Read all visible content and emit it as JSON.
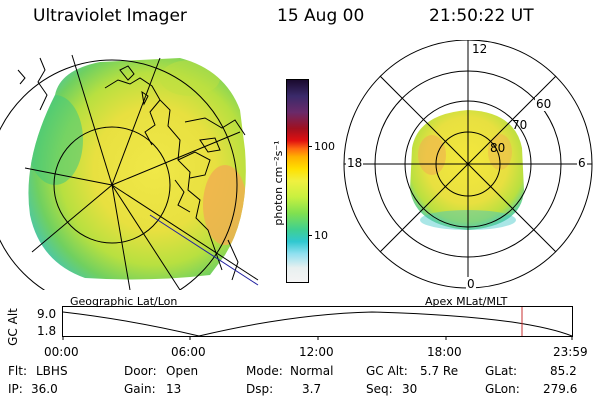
{
  "header": {
    "instrument": "Ultraviolet Imager",
    "date": "15 Aug 00",
    "time": "21:50:22 UT"
  },
  "colorbar": {
    "unit_label": "photon cm⁻²s⁻¹",
    "tick_labels": [
      "100",
      "10"
    ],
    "tick_values": [
      100,
      10
    ],
    "range": [
      2,
      700
    ],
    "colors_top_to_bottom": [
      "#1a0a2e",
      "#3a2a6a",
      "#6a2a6a",
      "#a01020",
      "#e01010",
      "#ff6a10",
      "#ffb000",
      "#ffe000",
      "#f0f040",
      "#c8f040",
      "#80e050",
      "#40d090",
      "#30c8d0",
      "#90e0f0",
      "#e8f0f0",
      "#f4f4f4"
    ]
  },
  "geo_panel": {
    "label": "Geographic Lat/Lon",
    "colors": {
      "land": "#000000",
      "bright": "#f0e040",
      "dim": "#40c880",
      "edge": "#60d0e0",
      "limb": "#f0b050"
    }
  },
  "polar_panel": {
    "label": "Apex MLat/MLT",
    "mlt_labels": {
      "top": "12",
      "bottom": "0",
      "left": "18",
      "right": "6"
    },
    "lat_labels": [
      "60",
      "70",
      "80"
    ]
  },
  "altitude_plot": {
    "axis_label": "GC Alt",
    "y_ticks": [
      "9.0",
      "1.8"
    ],
    "x_ticks": [
      "00:00",
      "06:00",
      "12:00",
      "18:00",
      "23:59"
    ],
    "cursor_time": "21:50",
    "cursor_color": "#c83030"
  },
  "info": {
    "flt_label": "Flt:",
    "flt_value": "LBHS",
    "ip_label": "IP:",
    "ip_value": "36.0",
    "door_label": "Door:",
    "door_value": "Open",
    "gain_label": "Gain:",
    "gain_value": "13",
    "mode_label": "Mode:",
    "mode_value": "Normal",
    "dsp_label": "Dsp:",
    "dsp_value": "3.7",
    "gcalt_label": "GC Alt:",
    "gcalt_value": "5.7 Re",
    "seq_label": "Seq:",
    "seq_value": "30",
    "glat_label": "GLat:",
    "glat_value": "85.2",
    "glon_label": "GLon:",
    "glon_value": "279.6"
  }
}
